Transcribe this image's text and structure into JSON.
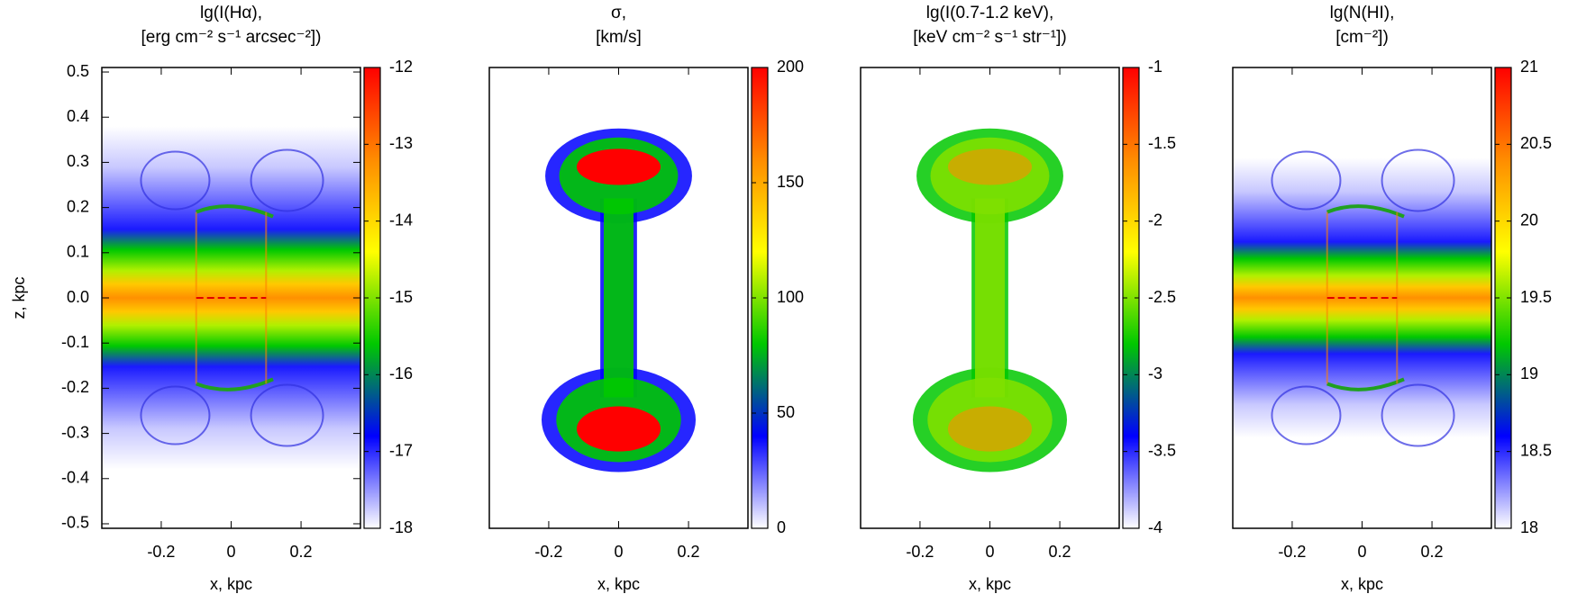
{
  "chart_data": [
    {
      "type": "heatmap",
      "title": [
        "lg(I(Hα),",
        "[erg cm⁻² s⁻¹ arcsec⁻²])"
      ],
      "xlabel": "x, kpc",
      "ylabel": "z, kpc",
      "xlim": [
        -0.37,
        0.37
      ],
      "xticks": [
        -0.2,
        0,
        0.2
      ],
      "ylim": [
        -0.51,
        0.51
      ],
      "yticks": [
        -0.5,
        -0.4,
        -0.3,
        -0.2,
        -0.1,
        {
          "value": 0,
          "label": "0.0"
        },
        0.1,
        0.2,
        0.3,
        0.4,
        0.5
      ],
      "clim": [
        -18,
        -12
      ],
      "cticks": [
        -18,
        -17,
        -16,
        -15,
        -14,
        -13,
        -12
      ],
      "colormap": [
        "#ffffff",
        "#0000ff",
        "#00c800",
        "#ffff00",
        "#ff8c00",
        "#ff0000"
      ]
    },
    {
      "type": "heatmap",
      "title": [
        "σ,",
        "[km/s]"
      ],
      "xlabel": "x, kpc",
      "xlim": [
        -0.37,
        0.37
      ],
      "xticks": [
        -0.2,
        0,
        0.2
      ],
      "ylim": [
        -0.51,
        0.51
      ],
      "clim": [
        0,
        200
      ],
      "cticks": [
        0,
        50,
        100,
        150,
        200
      ],
      "colormap": [
        "#ffffff",
        "#0000ff",
        "#00c800",
        "#ffff00",
        "#ff8c00",
        "#ff0000"
      ]
    },
    {
      "type": "heatmap",
      "title": [
        "lg(I(0.7-1.2 keV),",
        "[keV cm⁻² s⁻¹ str⁻¹])"
      ],
      "xlabel": "x, kpc",
      "xlim": [
        -0.37,
        0.37
      ],
      "xticks": [
        -0.2,
        0,
        0.2
      ],
      "ylim": [
        -0.51,
        0.51
      ],
      "clim": [
        -4,
        -1
      ],
      "cticks": [
        -4,
        -3.5,
        -3,
        -2.5,
        -2,
        -1.5,
        -1
      ],
      "colormap": [
        "#ffffff",
        "#0000ff",
        "#00c800",
        "#ffff00",
        "#ff8c00",
        "#ff0000"
      ]
    },
    {
      "type": "heatmap",
      "title": [
        "lg(N(HI),",
        "[cm⁻²])"
      ],
      "xlabel": "x, kpc",
      "xlim": [
        -0.37,
        0.37
      ],
      "xticks": [
        -0.2,
        0,
        0.2
      ],
      "ylim": [
        -0.51,
        0.51
      ],
      "clim": [
        18,
        21
      ],
      "cticks": [
        18,
        18.5,
        19,
        19.5,
        20,
        20.5,
        21
      ],
      "colormap": [
        "#ffffff",
        "#0000ff",
        "#00c800",
        "#ffff00",
        "#ff8c00",
        "#ff0000"
      ]
    }
  ]
}
